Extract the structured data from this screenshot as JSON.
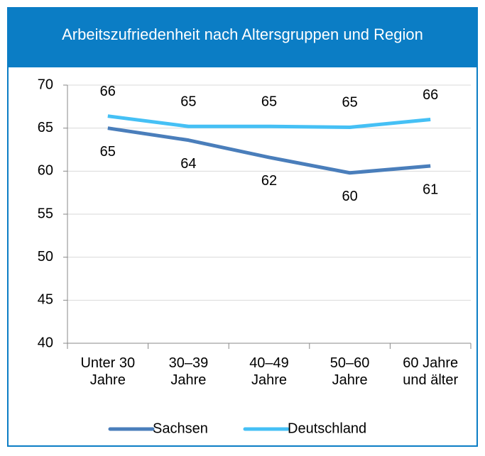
{
  "chart_data": {
    "type": "line",
    "title": "Arbeitszufriedenheit nach Altersgruppen und Region",
    "categories": [
      "Unter 30 Jahre",
      "30–39 Jahre",
      "40–49 Jahre",
      "50–60 Jahre",
      "60 Jahre und älter"
    ],
    "series": [
      {
        "name": "Sachsen",
        "color": "#4a7ebb",
        "values": [
          65.0,
          63.6,
          61.6,
          59.8,
          60.6
        ],
        "value_labels": [
          "65",
          "64",
          "62",
          "60",
          "61"
        ]
      },
      {
        "name": "Deutschland",
        "color": "#45c0f5",
        "values": [
          66.4,
          65.2,
          65.2,
          65.1,
          66.0
        ],
        "value_labels": [
          "66",
          "65",
          "65",
          "65",
          "66"
        ]
      }
    ],
    "ylim": [
      40,
      70
    ],
    "yticks": [
      40,
      45,
      50,
      55,
      60,
      65,
      70
    ],
    "grid": true,
    "legend": "bottom"
  }
}
